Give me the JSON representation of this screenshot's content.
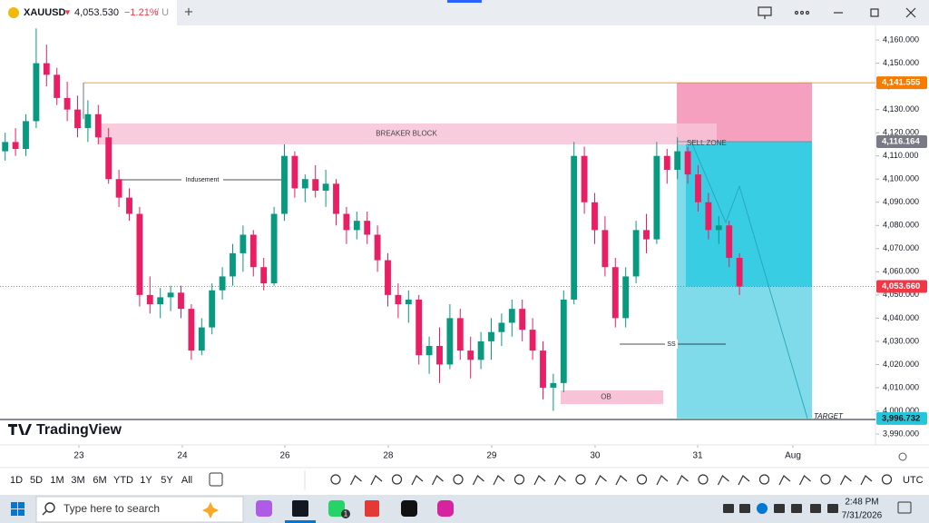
{
  "header": {
    "symbol": "XAUUSD",
    "arrow": "▼",
    "price": "4,053.530",
    "change": "−1.21%",
    "suffix": "/ U",
    "new_tab": "+"
  },
  "chart_data": {
    "type": "candlestick",
    "up_color": "#089981",
    "down_color": "#e91e63",
    "grid": false,
    "x": [
      0,
      1,
      2,
      3,
      4,
      5,
      6,
      7,
      8,
      9,
      10,
      11,
      12,
      13,
      14,
      15,
      16,
      17,
      18,
      19,
      20,
      21,
      22,
      23,
      24,
      25,
      26,
      27,
      28,
      29,
      30,
      31,
      32,
      33,
      34,
      35,
      36,
      37,
      38,
      39,
      40,
      41,
      42,
      43,
      44,
      45,
      46,
      47,
      48,
      49,
      50,
      51,
      52,
      53,
      54,
      55,
      56,
      57,
      58,
      59,
      60,
      61,
      62,
      63,
      64,
      65,
      66,
      67,
      68,
      69,
      70,
      71
    ],
    "open": [
      4112,
      4116,
      4113,
      4125,
      4150,
      4145,
      4135,
      4130,
      4122,
      4128,
      4118,
      4100,
      4092,
      4085,
      4050,
      4046,
      4049,
      4051,
      4044,
      4026,
      4036,
      4052,
      4058,
      4068,
      4076,
      4062,
      4055,
      4085,
      4110,
      4096,
      4100,
      4095,
      4098,
      4085,
      4078,
      4082,
      4076,
      4065,
      4050,
      4046,
      4048,
      4024,
      4028,
      4020,
      4040,
      4026,
      4022,
      4030,
      4034,
      4038,
      4044,
      4035,
      4026,
      4010,
      4012,
      4048,
      4110,
      4090,
      4078,
      4062,
      4040,
      4058,
      4078,
      4074,
      4110,
      4104,
      4112,
      4102,
      4090,
      4078,
      4080,
      4066
    ],
    "high": [
      4120,
      4122,
      4128,
      4165,
      4158,
      4148,
      4142,
      4136,
      4134,
      4132,
      4122,
      4104,
      4096,
      4088,
      4058,
      4053,
      4054,
      4054,
      4046,
      4040,
      4055,
      4062,
      4072,
      4080,
      4078,
      4066,
      4088,
      4115,
      4112,
      4102,
      4106,
      4104,
      4100,
      4088,
      4086,
      4086,
      4080,
      4068,
      4055,
      4052,
      4050,
      4032,
      4036,
      4046,
      4044,
      4032,
      4034,
      4040,
      4042,
      4048,
      4048,
      4040,
      4030,
      4016,
      4052,
      4116,
      4114,
      4094,
      4084,
      4066,
      4062,
      4082,
      4085,
      4116,
      4113,
      4118,
      4114,
      4106,
      4094,
      4084,
      4082,
      4068
    ],
    "low": [
      4108,
      4110,
      4110,
      4122,
      4140,
      4132,
      4125,
      4118,
      4116,
      4115,
      4098,
      4088,
      4082,
      4045,
      4042,
      4040,
      4043,
      4040,
      4022,
      4024,
      4033,
      4048,
      4054,
      4060,
      4058,
      4052,
      4054,
      4082,
      4092,
      4090,
      4092,
      4088,
      4080,
      4072,
      4074,
      4072,
      4060,
      4045,
      4040,
      4038,
      4020,
      4016,
      4012,
      4018,
      4022,
      4014,
      4018,
      4022,
      4028,
      4032,
      4030,
      4022,
      4005,
      4000,
      4008,
      4046,
      4085,
      4072,
      4058,
      4036,
      4036,
      4055,
      4068,
      4072,
      4098,
      4100,
      4098,
      4086,
      4074,
      4072,
      4062,
      4050
    ],
    "close": [
      4116,
      4113,
      4125,
      4150,
      4145,
      4135,
      4130,
      4122,
      4128,
      4118,
      4100,
      4092,
      4085,
      4050,
      4046,
      4049,
      4051,
      4044,
      4026,
      4036,
      4052,
      4058,
      4068,
      4076,
      4062,
      4055,
      4085,
      4110,
      4096,
      4100,
      4095,
      4098,
      4085,
      4078,
      4082,
      4076,
      4065,
      4050,
      4046,
      4048,
      4024,
      4028,
      4020,
      4040,
      4026,
      4022,
      4030,
      4034,
      4038,
      4044,
      4035,
      4026,
      4010,
      4012,
      4048,
      4110,
      4090,
      4078,
      4062,
      4040,
      4058,
      4078,
      4074,
      4110,
      4104,
      4112,
      4102,
      4090,
      4078,
      4080,
      4066,
      4053.66
    ],
    "xlim": [
      -0.5,
      84.15
    ],
    "xticks": [
      {
        "value": 7.13,
        "label": "23"
      },
      {
        "value": 17.13,
        "label": "24"
      },
      {
        "value": 27.05,
        "label": "26"
      },
      {
        "value": 37.04,
        "label": "28"
      },
      {
        "value": 47.04,
        "label": "29"
      },
      {
        "value": 57.04,
        "label": "30"
      },
      {
        "value": 66.96,
        "label": "31"
      },
      {
        "value": 76.17,
        "label": "Aug"
      }
    ],
    "ylim": [
      3985.3,
      4166.3
    ],
    "yticks": [
      {
        "value": 3990,
        "label": "3,990.000"
      },
      {
        "value": 4000,
        "label": "4,000.000"
      },
      {
        "value": 4010,
        "label": "4,010.000"
      },
      {
        "value": 4020,
        "label": "4,020.000"
      },
      {
        "value": 4030,
        "label": "4,030.000"
      },
      {
        "value": 4040,
        "label": "4,040.000"
      },
      {
        "value": 4050,
        "label": "4,050.000"
      },
      {
        "value": 4060,
        "label": "4,060.000"
      },
      {
        "value": 4070,
        "label": "4,070.000"
      },
      {
        "value": 4080,
        "label": "4,080.000"
      },
      {
        "value": 4090,
        "label": "4,090.000"
      },
      {
        "value": 4100,
        "label": "4,100.000"
      },
      {
        "value": 4110,
        "label": "4,110.000"
      },
      {
        "value": 4120,
        "label": "4,120.000"
      },
      {
        "value": 4130,
        "label": "4,130.000"
      },
      {
        "value": 4140,
        "label": "4,140.000"
      },
      {
        "value": 4150,
        "label": "4,150.000"
      },
      {
        "value": 4160,
        "label": "4,160.000"
      }
    ],
    "price_labels": [
      {
        "value": 4141.555,
        "label": "4,141.555",
        "color": "#f57c00"
      },
      {
        "value": 4116.164,
        "label": "4,116.164",
        "color": "#787b86"
      },
      {
        "value": 4053.66,
        "label": "4,053.660",
        "color": "#f23645"
      },
      {
        "value": 3996.732,
        "label": "3,996.732",
        "color": "#26c6da"
      }
    ],
    "annotations": {
      "breaker_block": {
        "label": "BREAKER BLOCK",
        "top": 4124,
        "bottom": 4115
      },
      "inducement": {
        "label": "Indusement",
        "price": 4099.7
      },
      "sell_zone": {
        "label": "SELL ZONE"
      },
      "ss": {
        "label": "SS",
        "price": 4028.8
      },
      "ob": {
        "label": "OB",
        "top": 4008.8,
        "bottom": 4002.9
      },
      "target": {
        "label": "TARGET"
      }
    }
  },
  "logo": "TradingView",
  "toolbar": {
    "intervals": [
      "1D",
      "5D",
      "1M",
      "3M",
      "6M",
      "YTD",
      "1Y",
      "5Y",
      "All"
    ],
    "timezone": "UTC"
  },
  "taskbar": {
    "search": "Type here to search",
    "badge": "1",
    "time": "2:48 PM",
    "date": "7/31/2026"
  }
}
